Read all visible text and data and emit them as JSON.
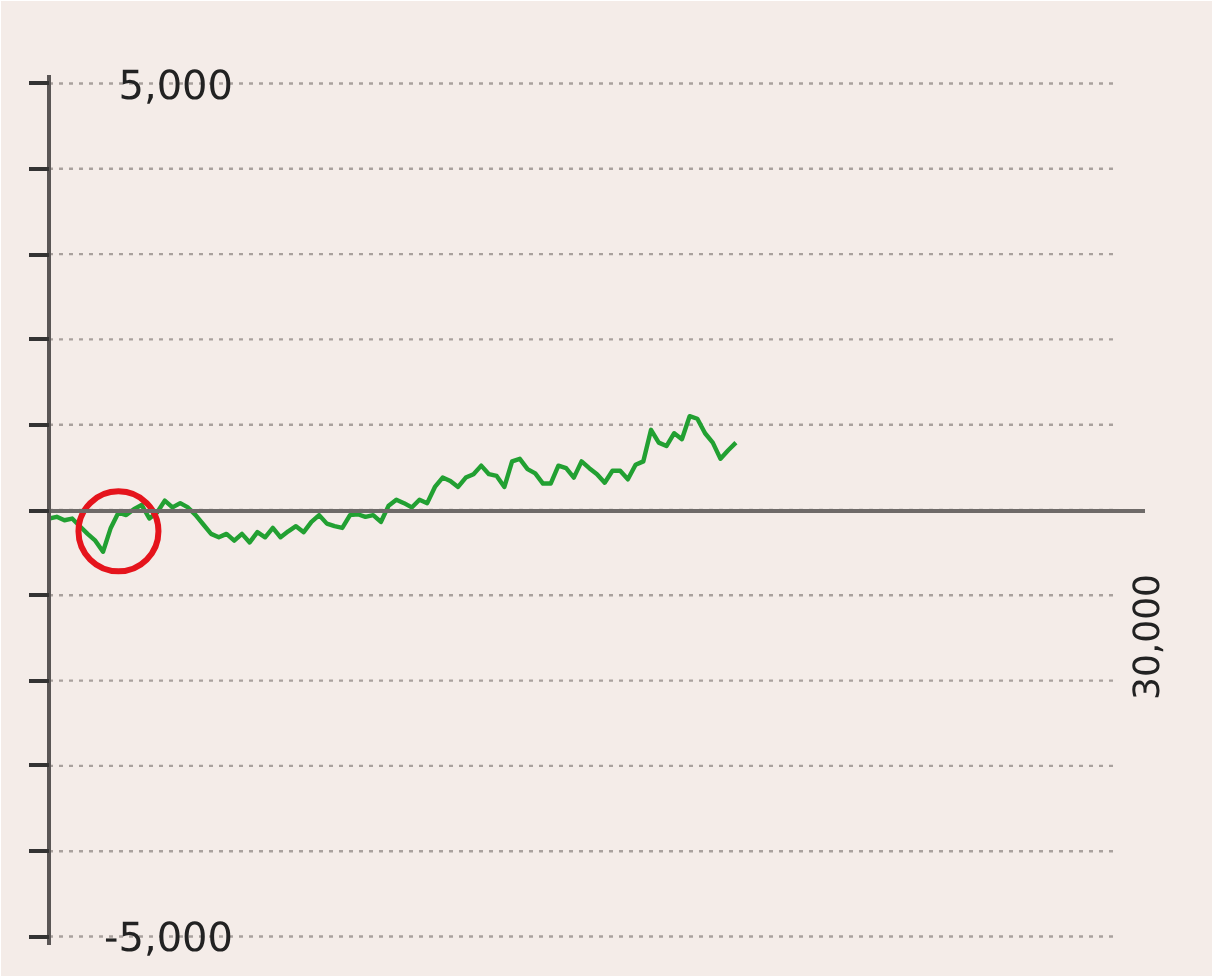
{
  "chart_data": {
    "type": "line",
    "categories": [
      null,
      null,
      null,
      null,
      null,
      null,
      null,
      null,
      null,
      null,
      null,
      null,
      null,
      null,
      null,
      null,
      null,
      null,
      null,
      null,
      null,
      null,
      null,
      null,
      null,
      null,
      null,
      null,
      null,
      null,
      null,
      null,
      null,
      null,
      null,
      null,
      null,
      null,
      null,
      null,
      null,
      null,
      null,
      null,
      null,
      null,
      null,
      null,
      null,
      null,
      null,
      null,
      null,
      null,
      null,
      null,
      null,
      null,
      null,
      null,
      null,
      null,
      null,
      null,
      null,
      null,
      null,
      null,
      null,
      null,
      null,
      null,
      null,
      null,
      null,
      null,
      null,
      null,
      null,
      null,
      null,
      null,
      null,
      null,
      null,
      null,
      null,
      null,
      null,
      null,
      null,
      null,
      null,
      null,
      null,
      null,
      null,
      null,
      null,
      null,
      null,
      null,
      null,
      null,
      null,
      null,
      null,
      null,
      null,
      null,
      null,
      null,
      null,
      null,
      null,
      null,
      null,
      null,
      null,
      null,
      null,
      null,
      null,
      null,
      null,
      null,
      null,
      null,
      null,
      null,
      null,
      null,
      null,
      null,
      null,
      null,
      null,
      null,
      null,
      null,
      null,
      null,
      null
    ],
    "ylim": [
      -5100,
      5100
    ],
    "yticks": [
      {
        "value": -5000,
        "label": "-5,000"
      },
      {
        "value": -4000,
        "label": null
      },
      {
        "value": -3000,
        "label": null
      },
      {
        "value": -2000,
        "label": null
      },
      {
        "value": -1000,
        "label": null
      },
      {
        "value": 0,
        "label": null
      },
      {
        "value": 1000,
        "label": null
      },
      {
        "value": 2000,
        "label": null
      },
      {
        "value": 3000,
        "label": null
      },
      {
        "value": 4000,
        "label": null
      },
      {
        "value": 5000,
        "label": "5,000"
      }
    ],
    "grid": "y",
    "annotations": [
      "30,000"
    ],
    "series": [
      {
        "color": "#22a032",
        "values": [
          -100,
          -80,
          -120,
          -100,
          -190,
          -280,
          -360,
          -490,
          -210,
          -30,
          -60,
          10,
          60,
          -100,
          -30,
          110,
          30,
          80,
          30,
          -60,
          -170,
          -280,
          -320,
          -280,
          -360,
          -280,
          -380,
          -260,
          -320,
          -210,
          -320,
          -250,
          -190,
          -260,
          -140,
          -60,
          -160,
          -190,
          -210,
          -60,
          -50,
          -80,
          -60,
          -140,
          50,
          120,
          80,
          30,
          120,
          80,
          270,
          380,
          340,
          270,
          380,
          420,
          520,
          420,
          400,
          270,
          570,
          600,
          480,
          430,
          310,
          310,
          520,
          490,
          380,
          570,
          490,
          420,
          320,
          460,
          460,
          360,
          530,
          570,
          940,
          790,
          750,
          900,
          830,
          1100,
          1070,
          900,
          790,
          600,
          700,
          790,
          null,
          null,
          null,
          null,
          null,
          null,
          null,
          null,
          null,
          null,
          null,
          null,
          null,
          null,
          null,
          null,
          null,
          null,
          null,
          null,
          null,
          null,
          null,
          null,
          null,
          null,
          null,
          null,
          null,
          null,
          null,
          null,
          null,
          null,
          null,
          null,
          null,
          null,
          null,
          null,
          null,
          null,
          null,
          null,
          null,
          null,
          null,
          null,
          null,
          null,
          null,
          null,
          null
        ]
      },
      {
        "type": "scatter",
        "color": "#e5141c",
        "marker": "circle",
        "values": [
          null,
          null,
          null,
          null,
          null,
          null,
          null,
          null,
          null,
          -250,
          null,
          null,
          null,
          null,
          null,
          null,
          null,
          null,
          null,
          null,
          null,
          null,
          null,
          null,
          null,
          null,
          null,
          null,
          null,
          null,
          null,
          null,
          null,
          null,
          null,
          null,
          null,
          null,
          null,
          null,
          null,
          null,
          null,
          null,
          null,
          null,
          null,
          null,
          null,
          null,
          null,
          null,
          null,
          null,
          null,
          null,
          null,
          null,
          null,
          null,
          null,
          null,
          null,
          null,
          null,
          null,
          null,
          null,
          null,
          null,
          null,
          null,
          null,
          null,
          null,
          null,
          null,
          null,
          null,
          null,
          null,
          null,
          null,
          null,
          null,
          null,
          null,
          null,
          null,
          null,
          null,
          null,
          null,
          null,
          null,
          null,
          null,
          null,
          null,
          null,
          null,
          null,
          null,
          null,
          null,
          null,
          null,
          null,
          null,
          null,
          null,
          null,
          null,
          null,
          null,
          null,
          null,
          null,
          null,
          null,
          null,
          null,
          null,
          null,
          null,
          null,
          null,
          null,
          null,
          null,
          null,
          null,
          null,
          null,
          null,
          null,
          null,
          null,
          null,
          null,
          null,
          null,
          null
        ]
      }
    ]
  }
}
